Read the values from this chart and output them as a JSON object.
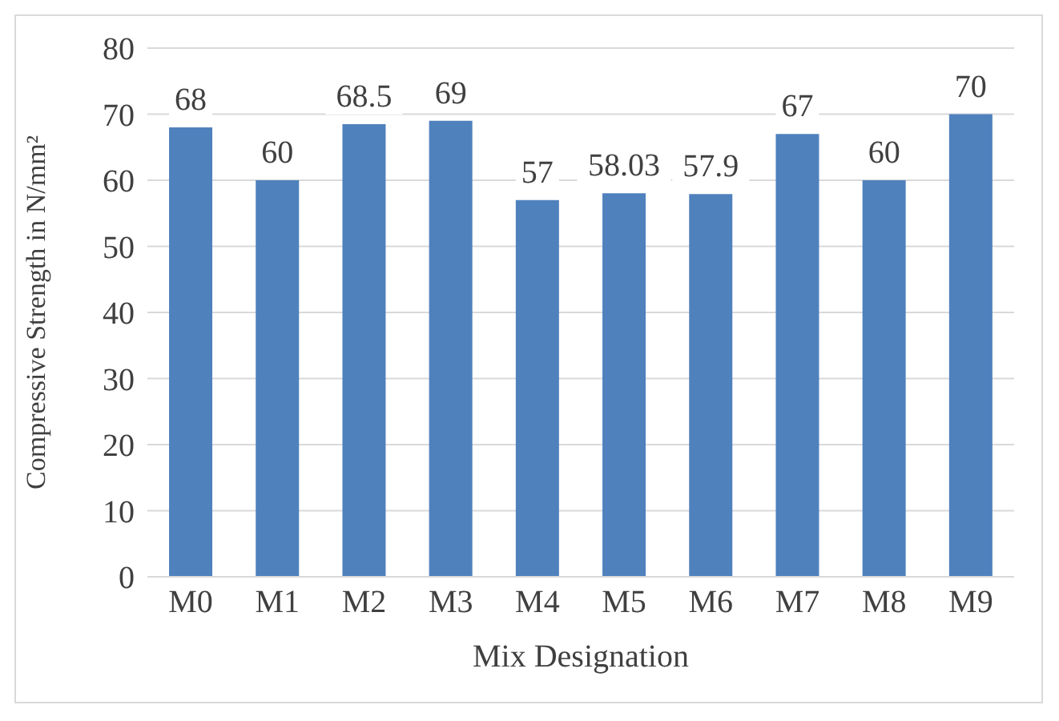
{
  "chart_data": {
    "type": "bar",
    "xlabel": "Mix Designation",
    "ylabel": "Compressive Strength in N/mm²",
    "categories": [
      "M0",
      "M1",
      "M2",
      "M3",
      "M4",
      "M5",
      "M6",
      "M7",
      "M8",
      "M9"
    ],
    "values": [
      68,
      60,
      68.5,
      69,
      57,
      58.03,
      57.9,
      67,
      60,
      70
    ],
    "color": "#4f81bd",
    "ylim": [
      0,
      80
    ],
    "yticks": [
      0,
      10,
      20,
      30,
      40,
      50,
      60,
      70,
      80
    ],
    "grid": "y",
    "legend": false,
    "data_labels": true
  }
}
